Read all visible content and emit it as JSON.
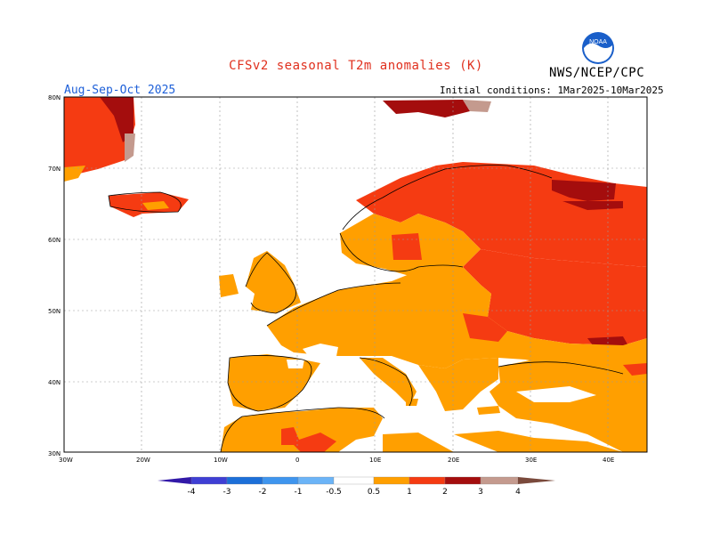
{
  "header": {
    "title": "CFSv2 seasonal T2m anomalies (K)",
    "period": "Aug-Sep-Oct 2025",
    "initial_conditions": "Initial conditions: 1Mar2025-10Mar2025",
    "agency": "NWS/NCEP/CPC",
    "logo_text": "NOAA"
  },
  "map": {
    "region": "Europe",
    "lat_labels": [
      "80N",
      "70N",
      "60N",
      "50N",
      "40N",
      "30N"
    ],
    "lon_labels": [
      "30W",
      "20W",
      "10W",
      "0",
      "10E",
      "20E",
      "30E",
      "40E"
    ],
    "grid": true,
    "anomaly_regions": [
      {
        "area": "Greenland",
        "level": "1 to 2",
        "color": "#f53b12"
      },
      {
        "area": "Iceland",
        "level": "1 to 2",
        "color": "#f53b12"
      },
      {
        "area": "Scandinavia north",
        "level": "1 to 2",
        "color": "#f53b12"
      },
      {
        "area": "Western and Central Europe",
        "level": "0.5 to 1",
        "color": "#ff9f00"
      },
      {
        "area": "Eastern Europe / Russia",
        "level": "1 to 2",
        "color": "#f53b12"
      },
      {
        "area": "Northern Russia coast",
        "level": "2 to 3",
        "color": "#a40d0d"
      },
      {
        "area": "Iberia and North Africa",
        "level": "0.5 to 1",
        "color": "#ff9f00"
      },
      {
        "area": "Turkey and Middle East",
        "level": "0.5 to 1",
        "color": "#ff9f00"
      }
    ]
  },
  "colorbar": {
    "labels": [
      "-4",
      "-3",
      "-2",
      "-1",
      "-0.5",
      "0.5",
      "1",
      "2",
      "3",
      "4"
    ],
    "colors": [
      "#3219a8",
      "#3f3fd4",
      "#1c6fd8",
      "#3f95ee",
      "#6bb4f7",
      "#ffffff",
      "#ff9f00",
      "#f53b12",
      "#a40d0d",
      "#c49a8e",
      "#7a4a3c"
    ]
  }
}
